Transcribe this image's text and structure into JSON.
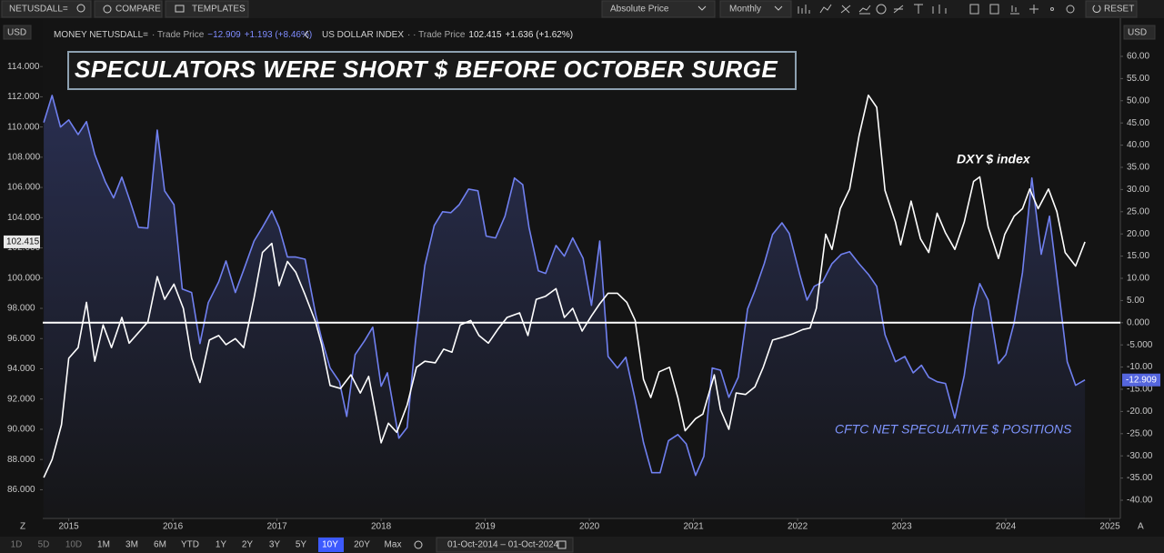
{
  "toolbar": {
    "symbol": "NETUSDALL=",
    "compare": "COMPARE",
    "templates": "TEMPLATES",
    "price_mode": "Absolute Price",
    "interval": "Monthly",
    "reset": "RESET",
    "currency_left": "USD",
    "currency_right": "USD"
  },
  "range_bar": {
    "ranges": [
      "1D",
      "5D",
      "10D",
      "1M",
      "3M",
      "6M",
      "YTD",
      "1Y",
      "2Y",
      "3Y",
      "5Y",
      "10Y",
      "20Y",
      "Max"
    ],
    "active": "10Y",
    "date_range": "01-Oct-2014  –  01-Oct-2024",
    "left_letter": "Z",
    "right_letter": "A"
  },
  "chart_data": {
    "type": "line",
    "title": "SPECULATORS WERE SHORT $ BEFORE OCTOBER SURGE",
    "annotations": [
      "DXY $ index",
      "CFTC NET SPECULATIVE $ POSITIONS"
    ],
    "legend": [
      {
        "prefix": "MONEY NETUSDALL=",
        "field": "· Trade Price",
        "last": "−12.909",
        "change": "+1.193 (+8.46%)"
      },
      {
        "prefix": "US DOLLAR INDEX",
        "field": "· · Trade Price",
        "last": "102.415",
        "change": "+1.636 (+1.62%)"
      }
    ],
    "last_value_labels": [
      "-12.909",
      "102.415"
    ],
    "xlim": [
      2014.75,
      2025.1
    ],
    "xticks": [
      2015,
      2016,
      2017,
      2018,
      2019,
      2020,
      2021,
      2022,
      2023,
      2024,
      2025
    ],
    "ylim": [
      84.1,
      117.2
    ],
    "yticks": [
      {
        "value": 86,
        "label": "86.000"
      },
      {
        "value": 88,
        "label": "88.000"
      },
      {
        "value": 90,
        "label": "90.000"
      },
      {
        "value": 92,
        "label": "92.000"
      },
      {
        "value": 94,
        "label": "94.000"
      },
      {
        "value": 96,
        "label": "96.000"
      },
      {
        "value": 98,
        "label": "98.000"
      },
      {
        "value": 100,
        "label": "100.000"
      },
      {
        "value": 102,
        "label": "102.000"
      },
      {
        "value": 104,
        "label": "104.000"
      },
      {
        "value": 106,
        "label": "106.000"
      },
      {
        "value": 108,
        "label": "108.000"
      },
      {
        "value": 110,
        "label": "110.000"
      },
      {
        "value": 112,
        "label": "112.000"
      },
      {
        "value": 114,
        "label": "114.000"
      }
    ],
    "y2lim": [
      -44.1,
      68.6
    ],
    "y2ticks": [
      {
        "value": 60,
        "label": "60.00"
      },
      {
        "value": 55,
        "label": "55.00"
      },
      {
        "value": 50,
        "label": "50.00"
      },
      {
        "value": 45,
        "label": "45.00"
      },
      {
        "value": 40,
        "label": "40.00"
      },
      {
        "value": 35,
        "label": "35.00"
      },
      {
        "value": 30,
        "label": "30.00"
      },
      {
        "value": 25,
        "label": "25.00"
      },
      {
        "value": 20,
        "label": "20.00"
      },
      {
        "value": 15,
        "label": "15.00"
      },
      {
        "value": 10,
        "label": "10.00"
      },
      {
        "value": 5,
        "label": "5.00"
      },
      {
        "value": 0,
        "label": "0.000"
      },
      {
        "value": -5,
        "label": "-5.000"
      },
      {
        "value": -10,
        "label": "-10.00"
      },
      {
        "value": -15,
        "label": "-15.00"
      },
      {
        "value": -20,
        "label": "-20.00"
      },
      {
        "value": -25,
        "label": "-25.00"
      },
      {
        "value": -30,
        "label": "-30.00"
      },
      {
        "value": -35,
        "label": "-35.00"
      },
      {
        "value": -40,
        "label": "-40.00"
      }
    ],
    "y2_reference_line": 0,
    "series": [
      {
        "name": "MONEY NETUSDALL=",
        "axis": "y2",
        "color": "#7080f0",
        "fill": true,
        "x": [
          2014.76,
          2014.84,
          2014.92,
          2015.0,
          2015.09,
          2015.17,
          2015.25,
          2015.35,
          2015.43,
          2015.51,
          2015.59,
          2015.67,
          2015.76,
          2015.85,
          2015.92,
          2016.01,
          2016.09,
          2016.18,
          2016.26,
          2016.34,
          2016.44,
          2016.51,
          2016.6,
          2016.68,
          2016.78,
          2016.86,
          2016.95,
          2017.02,
          2017.1,
          2017.18,
          2017.27,
          2017.37,
          2017.43,
          2017.51,
          2017.6,
          2017.67,
          2017.75,
          2017.84,
          2017.92,
          2018.0,
          2018.06,
          2018.17,
          2018.25,
          2018.33,
          2018.42,
          2018.51,
          2018.59,
          2018.67,
          2018.75,
          2018.84,
          2018.93,
          2019.01,
          2019.1,
          2019.19,
          2019.28,
          2019.36,
          2019.42,
          2019.51,
          2019.58,
          2019.68,
          2019.76,
          2019.84,
          2019.94,
          2020.02,
          2020.1,
          2020.18,
          2020.27,
          2020.35,
          2020.44,
          2020.52,
          2020.6,
          2020.68,
          2020.76,
          2020.85,
          2020.93,
          2021.02,
          2021.1,
          2021.18,
          2021.26,
          2021.34,
          2021.43,
          2021.52,
          2021.59,
          2021.68,
          2021.76,
          2021.85,
          2021.92,
          2022.02,
          2022.09,
          2022.16,
          2022.24,
          2022.33,
          2022.42,
          2022.5,
          2022.59,
          2022.68,
          2022.76,
          2022.84,
          2022.94,
          2023.03,
          2023.11,
          2023.19,
          2023.26,
          2023.34,
          2023.42,
          2023.51,
          2023.6,
          2023.69,
          2023.75,
          2023.83,
          2023.93,
          2024.0,
          2024.08,
          2024.16,
          2024.25,
          2024.34,
          2024.42,
          2024.51,
          2024.59,
          2024.67,
          2024.76
        ],
        "values": [
          45.1,
          51.2,
          44.1,
          45.7,
          42.4,
          45.3,
          37.9,
          31.8,
          28.1,
          32.8,
          27.3,
          21.5,
          21.3,
          43.4,
          29.7,
          26.6,
          7.6,
          6.8,
          -4.7,
          4.5,
          9.2,
          13.9,
          6.8,
          11.9,
          18.4,
          21.5,
          25.2,
          21.5,
          14.8,
          14.8,
          14.3,
          2.0,
          -3.7,
          -10.2,
          -13.3,
          -21.1,
          -7.2,
          -4.1,
          -1.0,
          -14.3,
          -11.3,
          -26.0,
          -23.6,
          -4.1,
          12.9,
          21.9,
          25.0,
          24.8,
          26.6,
          30.1,
          29.7,
          19.5,
          19.1,
          24.0,
          32.6,
          31.1,
          21.5,
          11.7,
          11.1,
          17.4,
          15.0,
          19.1,
          14.5,
          3.9,
          18.4,
          -7.6,
          -10.2,
          -7.8,
          -17.4,
          -27.0,
          -33.8,
          -33.8,
          -26.6,
          -25.2,
          -27.3,
          -34.4,
          -30.1,
          -10.2,
          -10.7,
          -16.8,
          -12.3,
          3.1,
          7.2,
          13.3,
          19.9,
          22.5,
          20.1,
          10.9,
          5.1,
          8.2,
          9.2,
          13.3,
          15.4,
          16.0,
          13.3,
          10.9,
          8.2,
          -2.7,
          -8.8,
          -7.6,
          -11.3,
          -9.6,
          -12.3,
          -13.3,
          -13.7,
          -21.5,
          -11.9,
          3.1,
          8.8,
          5.1,
          -9.2,
          -7.2,
          0.0,
          11.3,
          32.6,
          15.4,
          24.0,
          6.8,
          -8.8,
          -14.1,
          -12.9
        ]
      },
      {
        "name": "US DOLLAR INDEX",
        "axis": "y",
        "color": "#ffffff",
        "fill": false,
        "x": [
          2014.76,
          2014.84,
          2014.93,
          2015.0,
          2015.09,
          2015.17,
          2015.25,
          2015.33,
          2015.41,
          2015.51,
          2015.58,
          2015.76,
          2015.85,
          2015.92,
          2016.01,
          2016.1,
          2016.18,
          2016.26,
          2016.35,
          2016.44,
          2016.51,
          2016.6,
          2016.68,
          2016.78,
          2016.86,
          2016.95,
          2017.02,
          2017.1,
          2017.18,
          2017.27,
          2017.37,
          2017.43,
          2017.51,
          2017.61,
          2017.71,
          2017.8,
          2017.88,
          2018.0,
          2018.07,
          2018.15,
          2018.25,
          2018.34,
          2018.42,
          2018.52,
          2018.6,
          2018.68,
          2018.76,
          2018.86,
          2018.94,
          2019.03,
          2019.12,
          2019.21,
          2019.33,
          2019.41,
          2019.49,
          2019.58,
          2019.68,
          2019.76,
          2019.84,
          2019.93,
          2020.02,
          2020.1,
          2020.18,
          2020.27,
          2020.36,
          2020.44,
          2020.52,
          2020.59,
          2020.67,
          2020.77,
          2020.85,
          2020.92,
          2021.02,
          2021.09,
          2021.2,
          2021.26,
          2021.34,
          2021.41,
          2021.5,
          2021.59,
          2021.67,
          2021.76,
          2021.86,
          2021.95,
          2022.05,
          2022.12,
          2022.18,
          2022.27,
          2022.33,
          2022.41,
          2022.5,
          2022.59,
          2022.68,
          2022.76,
          2022.84,
          2022.94,
          2022.99,
          2023.09,
          2023.18,
          2023.26,
          2023.34,
          2023.42,
          2023.51,
          2023.6,
          2023.69,
          2023.75,
          2023.83,
          2023.93,
          2023.99,
          2024.08,
          2024.16,
          2024.23,
          2024.31,
          2024.41,
          2024.49,
          2024.57,
          2024.67,
          2024.76
        ],
        "values": [
          86.8,
          88.0,
          90.3,
          94.7,
          95.4,
          98.4,
          94.5,
          96.9,
          95.4,
          97.4,
          95.7,
          97.1,
          100.1,
          98.6,
          99.6,
          98.0,
          94.7,
          93.1,
          95.9,
          96.2,
          95.6,
          96.0,
          95.4,
          98.7,
          101.7,
          102.3,
          99.5,
          101.1,
          100.4,
          98.9,
          97.1,
          95.6,
          92.9,
          92.7,
          93.6,
          92.4,
          93.5,
          89.1,
          90.4,
          89.8,
          91.6,
          94.1,
          94.5,
          94.4,
          95.3,
          95.1,
          96.9,
          97.2,
          96.2,
          95.7,
          96.6,
          97.4,
          97.7,
          96.2,
          98.6,
          98.8,
          99.3,
          97.4,
          98.0,
          96.5,
          97.5,
          98.3,
          99.0,
          99.0,
          98.4,
          97.2,
          93.3,
          92.1,
          93.8,
          94.1,
          92.1,
          89.9,
          90.7,
          91.0,
          93.6,
          91.3,
          90.0,
          92.4,
          92.3,
          92.8,
          94.1,
          95.9,
          96.1,
          96.3,
          96.6,
          96.7,
          98.0,
          102.9,
          101.9,
          104.6,
          105.9,
          109.4,
          112.1,
          111.3,
          105.8,
          103.7,
          102.2,
          105.1,
          102.6,
          101.7,
          104.3,
          103.0,
          101.9,
          103.7,
          106.4,
          106.7,
          103.4,
          101.3,
          102.9,
          104.1,
          104.6,
          105.9,
          104.6,
          105.9,
          104.4,
          101.7,
          100.8,
          102.4
        ]
      }
    ]
  }
}
